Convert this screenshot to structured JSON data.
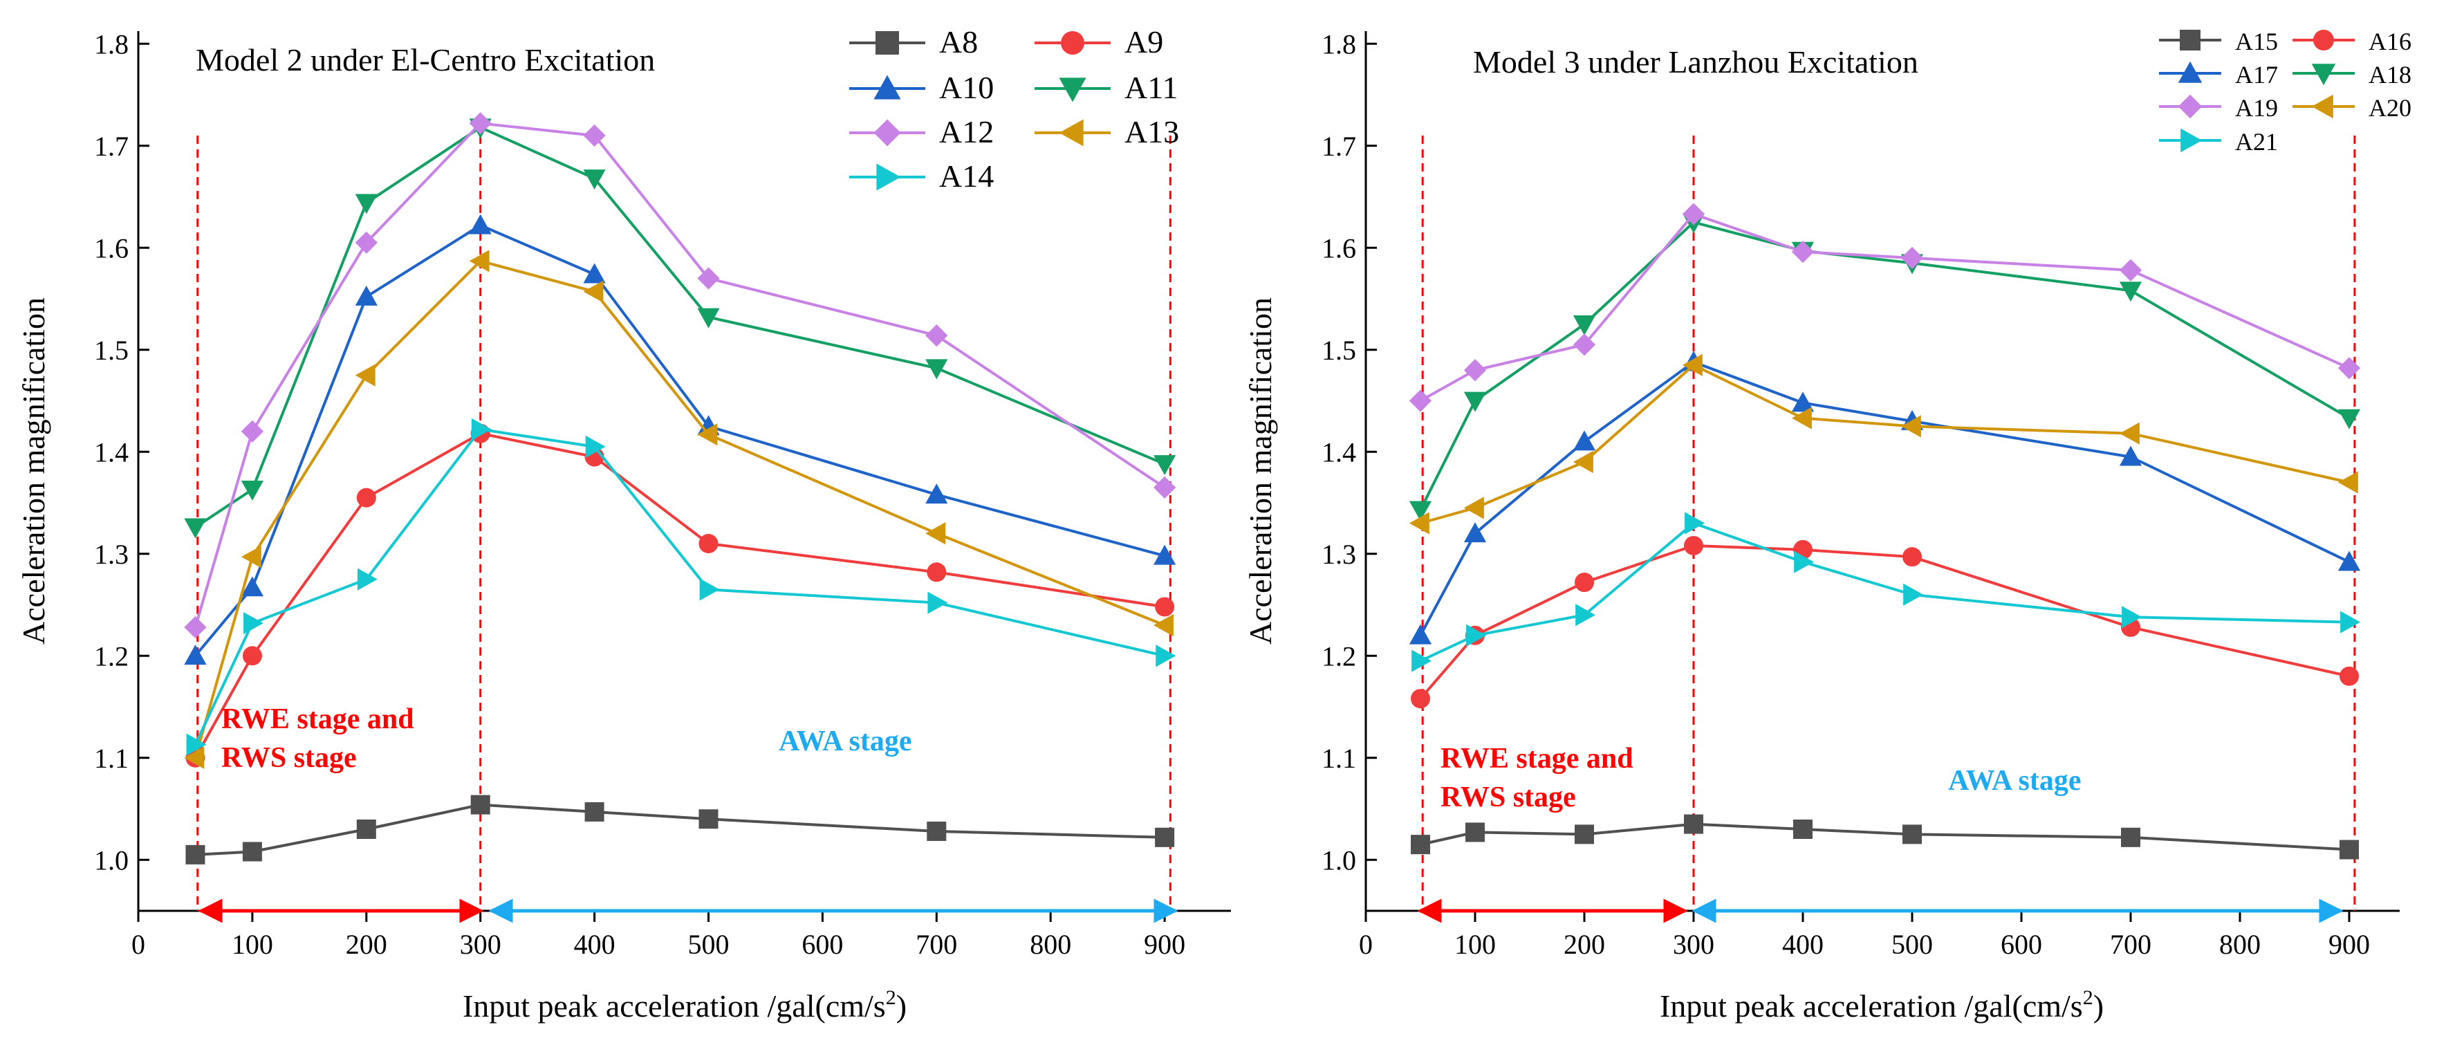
{
  "chart_data": [
    {
      "type": "line",
      "title": "Model 2 under El-Centro Excitation",
      "xlabel": "Input peak acceleration /gal(cm/s",
      "xlabel_sup": "2",
      "xlabel_end": ")",
      "ylabel": "Acceleration magnification",
      "xlim": [
        0,
        950
      ],
      "ylim": [
        0.95,
        1.8
      ],
      "x_ticks": [
        0,
        100,
        200,
        300,
        400,
        500,
        600,
        700,
        800,
        900
      ],
      "y_ticks": [
        "1.0",
        "1.1",
        "1.2",
        "1.3",
        "1.4",
        "1.5",
        "1.6",
        "1.7",
        "1.8"
      ],
      "x": [
        50,
        100,
        200,
        300,
        400,
        500,
        700,
        900
      ],
      "series": [
        {
          "name": "A8",
          "color": "#505050",
          "marker": "square",
          "values": [
            1.005,
            1.008,
            1.03,
            1.054,
            1.047,
            1.04,
            1.028,
            1.022
          ]
        },
        {
          "name": "A9",
          "color": "#f03c3c",
          "marker": "circle",
          "values": [
            1.1,
            1.2,
            1.355,
            1.418,
            1.395,
            1.31,
            1.282,
            1.248
          ]
        },
        {
          "name": "A10",
          "color": "#1e64c8",
          "marker": "triangle-up",
          "values": [
            1.2,
            1.267,
            1.552,
            1.622,
            1.574,
            1.425,
            1.358,
            1.298
          ]
        },
        {
          "name": "A11",
          "color": "#14a064",
          "marker": "triangle-down",
          "values": [
            1.326,
            1.363,
            1.644,
            1.718,
            1.668,
            1.532,
            1.482,
            1.388
          ]
        },
        {
          "name": "A12",
          "color": "#c882e6",
          "marker": "diamond",
          "values": [
            1.228,
            1.42,
            1.605,
            1.722,
            1.71,
            1.57,
            1.514,
            1.365
          ]
        },
        {
          "name": "A13",
          "color": "#d2960a",
          "marker": "triangle-left",
          "values": [
            1.1,
            1.297,
            1.475,
            1.587,
            1.557,
            1.417,
            1.32,
            1.23
          ]
        },
        {
          "name": "A14",
          "color": "#14c8d2",
          "marker": "triangle-right",
          "values": [
            1.113,
            1.232,
            1.275,
            1.422,
            1.405,
            1.265,
            1.252,
            1.2
          ]
        }
      ],
      "legend": {
        "placement": "top-right",
        "columns": 2
      },
      "vlines": [
        52,
        300,
        905
      ],
      "stage_labels": {
        "red_line1": "RWE stage and",
        "red_line2": "RWS stage",
        "blue": "AWA stage"
      }
    },
    {
      "type": "line",
      "title": "Model 3 under Lanzhou Excitation",
      "xlabel": "Input peak acceleration /gal(cm/s",
      "xlabel_sup": "2",
      "xlabel_end": ")",
      "ylabel": "Acceleration magnification",
      "xlim": [
        0,
        950
      ],
      "ylim": [
        0.95,
        1.8
      ],
      "x_ticks": [
        0,
        100,
        200,
        300,
        400,
        500,
        600,
        700,
        800,
        900
      ],
      "y_ticks": [
        "1.0",
        "1.1",
        "1.2",
        "1.3",
        "1.4",
        "1.5",
        "1.6",
        "1.7",
        "1.8"
      ],
      "x": [
        50,
        100,
        200,
        300,
        400,
        500,
        700,
        900
      ],
      "series": [
        {
          "name": "A15",
          "color": "#505050",
          "marker": "square",
          "values": [
            1.015,
            1.027,
            1.025,
            1.035,
            1.03,
            1.025,
            1.022,
            1.01
          ]
        },
        {
          "name": "A16",
          "color": "#f03c3c",
          "marker": "circle",
          "values": [
            1.158,
            1.22,
            1.272,
            1.308,
            1.304,
            1.297,
            1.228,
            1.18
          ]
        },
        {
          "name": "A17",
          "color": "#1e64c8",
          "marker": "triangle-up",
          "values": [
            1.22,
            1.32,
            1.41,
            1.488,
            1.448,
            1.43,
            1.395,
            1.292
          ]
        },
        {
          "name": "A18",
          "color": "#14a064",
          "marker": "triangle-down",
          "values": [
            1.343,
            1.45,
            1.525,
            1.625,
            1.597,
            1.585,
            1.558,
            1.433
          ]
        },
        {
          "name": "A19",
          "color": "#c882e6",
          "marker": "diamond",
          "values": [
            1.45,
            1.48,
            1.505,
            1.633,
            1.596,
            1.59,
            1.578,
            1.482
          ]
        },
        {
          "name": "A20",
          "color": "#d2960a",
          "marker": "triangle-left",
          "values": [
            1.33,
            1.345,
            1.39,
            1.485,
            1.433,
            1.425,
            1.418,
            1.37
          ]
        },
        {
          "name": "A21",
          "color": "#14c8d2",
          "marker": "triangle-right",
          "values": [
            1.195,
            1.22,
            1.24,
            1.33,
            1.292,
            1.26,
            1.238,
            1.233
          ]
        }
      ],
      "legend": {
        "placement": "top-right",
        "columns": 2
      },
      "vlines": [
        52,
        300,
        905
      ],
      "stage_labels": {
        "red_line1": "RWE stage and",
        "red_line2": "RWS stage",
        "blue": "AWA stage"
      }
    }
  ]
}
